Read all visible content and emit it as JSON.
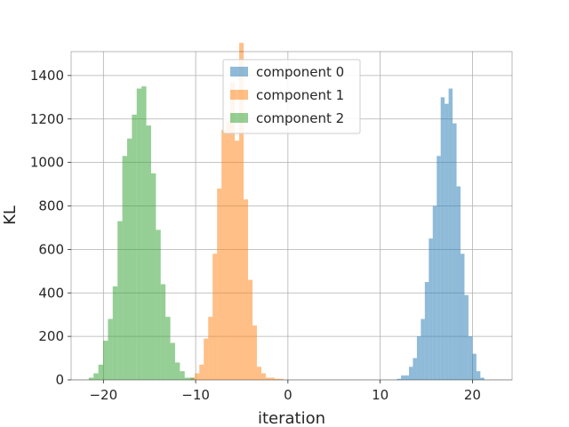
{
  "chart_data": {
    "type": "histogram",
    "xlabel": "iteration",
    "ylabel": "KL",
    "xlim": [
      -23.5,
      24.3
    ],
    "ylim": [
      0,
      1510
    ],
    "grid": true,
    "legend_position": "top-center",
    "x_ticks": [
      {
        "value": -20,
        "label": "−20"
      },
      {
        "value": -10,
        "label": "−10"
      },
      {
        "value": 0,
        "label": "0"
      },
      {
        "value": 10,
        "label": "10"
      },
      {
        "value": 20,
        "label": "20"
      }
    ],
    "y_ticks": [
      {
        "value": 0,
        "label": "0"
      },
      {
        "value": 200,
        "label": "200"
      },
      {
        "value": 400,
        "label": "400"
      },
      {
        "value": 600,
        "label": "600"
      },
      {
        "value": 800,
        "label": "800"
      },
      {
        "value": 1000,
        "label": "1000"
      },
      {
        "value": 1200,
        "label": "1200"
      },
      {
        "value": 1400,
        "label": "1400"
      }
    ],
    "series": [
      {
        "name": "component 0",
        "color": "#1f77b4",
        "opacity": 0.5,
        "bin_edges": [
          11.83,
          12.26,
          12.69,
          13.12,
          13.55,
          13.98,
          14.41,
          14.84,
          15.27,
          15.7,
          16.13,
          16.56,
          16.99,
          17.42,
          17.85,
          18.28,
          18.71,
          19.14,
          19.57,
          20.0,
          20.43,
          20.86,
          21.29
        ],
        "counts": [
          5,
          20,
          20,
          60,
          100,
          200,
          280,
          450,
          650,
          800,
          1030,
          1300,
          1270,
          1340,
          1180,
          890,
          580,
          390,
          200,
          120,
          40,
          10
        ]
      },
      {
        "name": "component 1",
        "color": "#ff7f0e",
        "opacity": 0.5,
        "bin_edges": [
          -10.56,
          -10.08,
          -9.6,
          -9.12,
          -8.64,
          -8.16,
          -7.68,
          -7.2,
          -6.72,
          -6.24,
          -5.76,
          -5.28,
          -4.8,
          -4.32,
          -3.84,
          -3.36,
          -2.88,
          -2.4,
          -1.92,
          -1.44,
          -0.96,
          -0.48
        ],
        "counts": [
          10,
          30,
          70,
          190,
          290,
          580,
          880,
          1150,
          1190,
          1370,
          1100,
          1550,
          830,
          460,
          250,
          60,
          30,
          10,
          10,
          5,
          5
        ]
      },
      {
        "name": "component 2",
        "color": "#2ca02c",
        "opacity": 0.5,
        "bin_edges": [
          -21.59,
          -21.07,
          -20.55,
          -20.03,
          -19.51,
          -18.99,
          -18.47,
          -17.95,
          -17.43,
          -16.91,
          -16.39,
          -15.87,
          -15.35,
          -14.83,
          -14.31,
          -13.79,
          -13.27,
          -12.75,
          -12.23,
          -11.71,
          -11.19,
          -10.67,
          -10.15
        ],
        "counts": [
          10,
          30,
          70,
          180,
          280,
          430,
          730,
          1030,
          1110,
          1220,
          1340,
          1350,
          1170,
          950,
          690,
          440,
          290,
          170,
          80,
          40,
          10,
          10
        ]
      }
    ]
  }
}
